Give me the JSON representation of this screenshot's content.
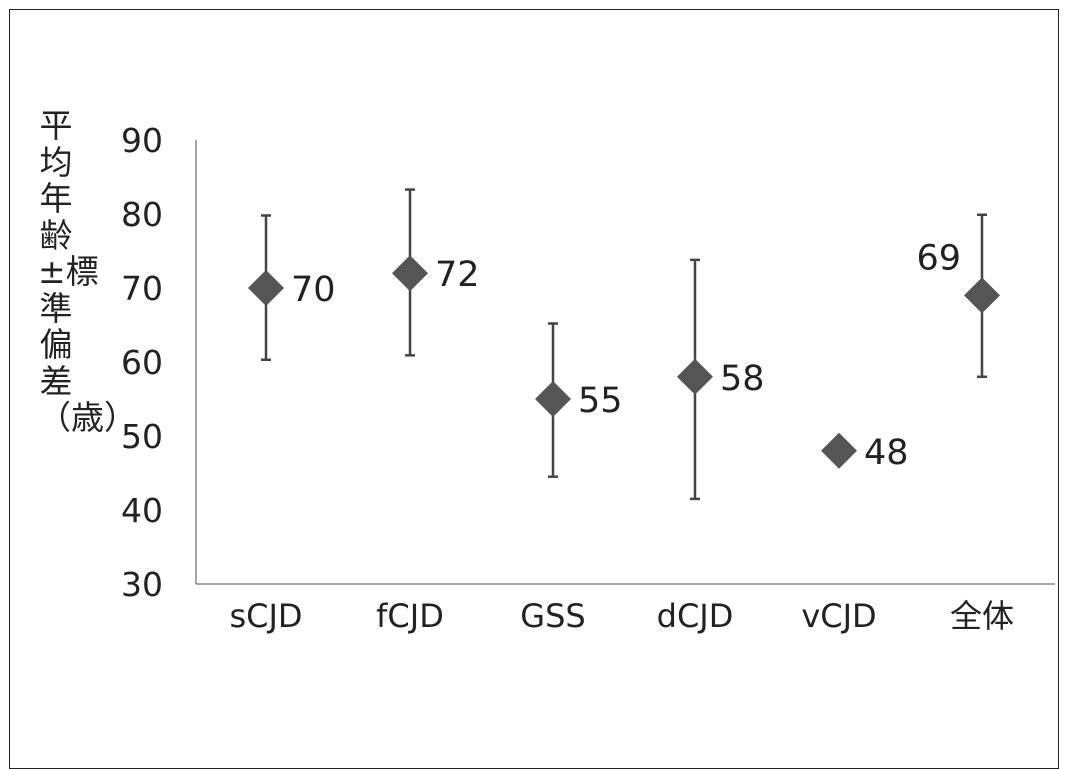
{
  "chart_data": {
    "type": "scatter",
    "ylabel": "平均年齢±標準偏差（歳）",
    "ylim": [
      30,
      90
    ],
    "yticks": [
      30,
      40,
      50,
      60,
      70,
      80,
      90
    ],
    "categories": [
      "sCJD",
      "fCJD",
      "GSS",
      "dCJD",
      "vCJD",
      "全体"
    ],
    "values": [
      70,
      72,
      55,
      58,
      48,
      69
    ],
    "error_low": [
      60.3,
      60.9,
      44.5,
      41.5,
      null,
      58
    ],
    "error_high": [
      79.8,
      83.3,
      65.2,
      73.8,
      null,
      79.9
    ],
    "data_labels": [
      "70",
      "72",
      "55",
      "58",
      "48",
      "69"
    ],
    "grid": false,
    "legend": "none",
    "marker_color": "#555555"
  }
}
